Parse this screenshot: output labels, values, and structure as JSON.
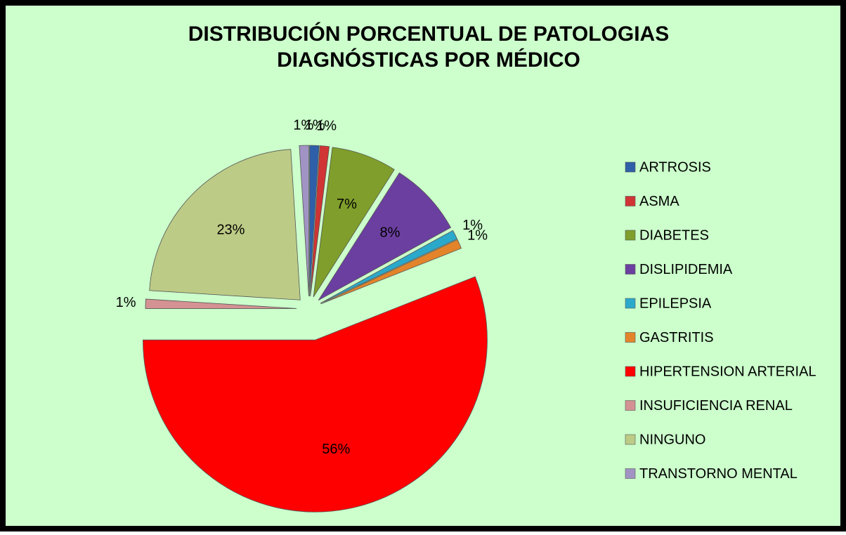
{
  "chart_data": {
    "type": "pie",
    "title": "DISTRIBUCIÓN PORCENTUAL DE PATOLOGIAS DIAGNÓSTICAS POR MÉDICO",
    "legend": "right",
    "series": [
      {
        "categories": [
          "ARTROSIS",
          "ASMA",
          "DIABETES",
          "DISLIPIDEMIA",
          "EPILEPSIA",
          "GASTRITIS",
          "HIPERTENSION ARTERIAL",
          "INSUFICIENCIA RENAL",
          "NINGUNO",
          "TRANSTORNO MENTAL"
        ],
        "values": [
          1,
          1,
          7,
          8,
          1,
          1,
          56,
          1,
          23,
          1
        ],
        "value_labels": [
          "1%",
          "1%",
          "7%",
          "8%",
          "1%",
          "1%",
          "56%",
          "1%",
          "23%",
          "1%"
        ],
        "colors": [
          "#2f5fa8",
          "#d03434",
          "#7f9e2c",
          "#6b3fa0",
          "#2ba9cb",
          "#e3842a",
          "#ff0000",
          "#d49292",
          "#bccb86",
          "#a194c4"
        ]
      }
    ]
  }
}
